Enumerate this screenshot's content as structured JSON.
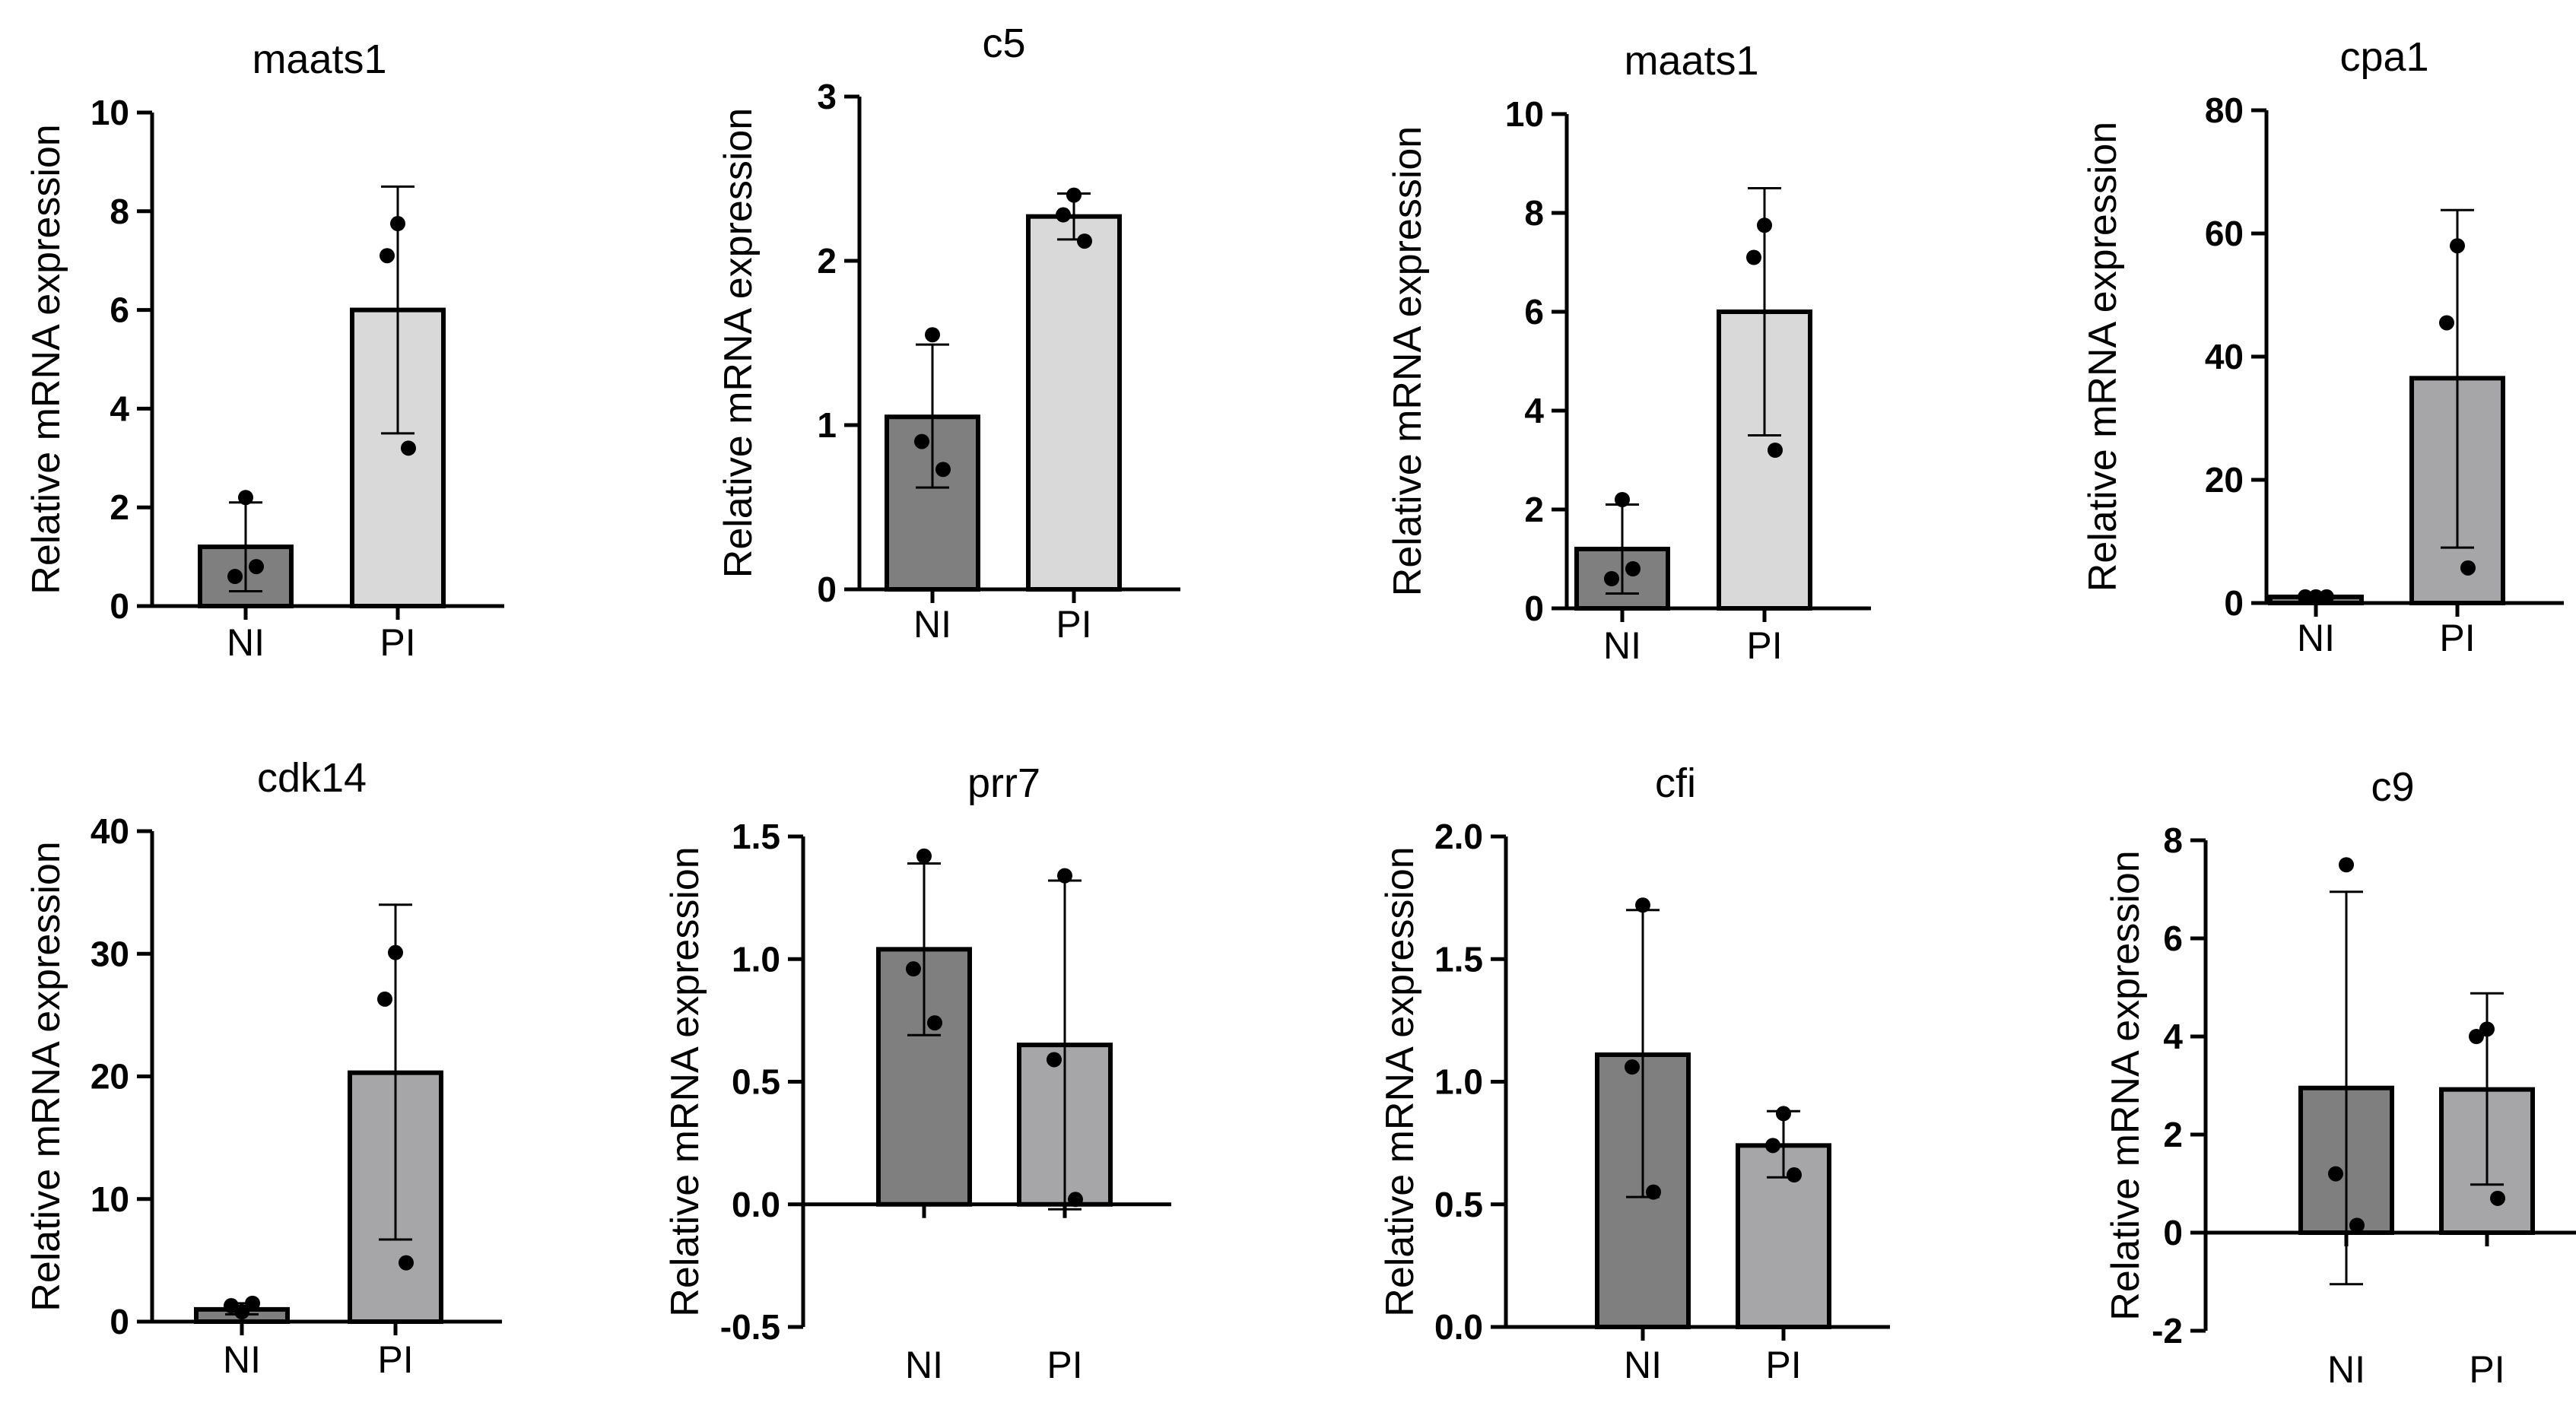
{
  "chart_data": [
    {
      "type": "bar",
      "title": "maats1",
      "ylabel": "Relative mRNA expression",
      "categories": [
        "NI",
        "PI"
      ],
      "ylim": [
        0,
        10
      ],
      "ticks": [
        "0",
        "2",
        "4",
        "6",
        "8",
        "10"
      ],
      "values": [
        1.2,
        6.0
      ],
      "errors": [
        [
          0.3,
          2.1
        ],
        [
          3.5,
          8.5
        ]
      ],
      "points": [
        [
          2.2,
          0.6,
          0.8
        ],
        [
          7.75,
          7.1,
          3.2
        ]
      ]
    },
    {
      "type": "bar",
      "title": "c5",
      "ylabel": "Relative mRNA expression",
      "categories": [
        "NI",
        "PI"
      ],
      "ylim": [
        0,
        3
      ],
      "ticks": [
        "0",
        "1",
        "2",
        "3"
      ],
      "values": [
        1.05,
        2.27
      ],
      "errors": [
        [
          0.62,
          1.49
        ],
        [
          2.13,
          2.41
        ]
      ],
      "points": [
        [
          1.55,
          0.9,
          0.73
        ],
        [
          2.4,
          2.28,
          2.12
        ]
      ]
    },
    {
      "type": "bar",
      "title": "maats1",
      "ylabel": "Relative mRNA expression",
      "categories": [
        "NI",
        "PI"
      ],
      "ylim": [
        0,
        10
      ],
      "ticks": [
        "0",
        "2",
        "4",
        "6",
        "8",
        "10"
      ],
      "values": [
        1.2,
        6.0
      ],
      "errors": [
        [
          0.3,
          2.1
        ],
        [
          3.5,
          8.5
        ]
      ],
      "points": [
        [
          2.2,
          0.6,
          0.8
        ],
        [
          7.75,
          7.1,
          3.2
        ]
      ]
    },
    {
      "type": "bar",
      "title": "cpa1",
      "ylabel": "Relative mRNA expression",
      "categories": [
        "NI",
        "PI"
      ],
      "ylim": [
        0,
        80
      ],
      "ticks": [
        "0",
        "20",
        "40",
        "60",
        "80"
      ],
      "values": [
        1.0,
        36.5
      ],
      "errors": [
        [
          0.7,
          1.3
        ],
        [
          9.0,
          63.8
        ]
      ],
      "points": [
        [
          1.0,
          1.0,
          1.0
        ],
        [
          58.0,
          45.5,
          5.7
        ]
      ]
    },
    {
      "type": "bar",
      "title": "cdk14",
      "ylabel": "Relative mRNA expression",
      "categories": [
        "NI",
        "PI"
      ],
      "ylim": [
        0,
        40
      ],
      "ticks": [
        "0",
        "10",
        "20",
        "30",
        "40"
      ],
      "values": [
        1.0,
        20.3
      ],
      "errors": [
        [
          0.6,
          1.5
        ],
        [
          6.7,
          34.0
        ]
      ],
      "points": [
        [
          0.8,
          1.3,
          1.5
        ],
        [
          30.1,
          26.3,
          4.8
        ]
      ]
    },
    {
      "type": "bar",
      "title": "prr7",
      "ylabel": "Relative mRNA expression",
      "categories": [
        "NI",
        "PI"
      ],
      "ylim": [
        -0.5,
        1.5
      ],
      "ticks": [
        "-0.5",
        "0.0",
        "0.5",
        "1.0",
        "1.5"
      ],
      "values": [
        1.04,
        0.65
      ],
      "errors": [
        [
          0.69,
          1.39
        ],
        [
          -0.02,
          1.32
        ]
      ],
      "points": [
        [
          1.42,
          0.96,
          0.74
        ],
        [
          1.34,
          0.59,
          0.02
        ]
      ]
    },
    {
      "type": "bar",
      "title": "cfi",
      "ylabel": "Relative mRNA expression",
      "categories": [
        "NI",
        "PI"
      ],
      "ylim": [
        0,
        2.0
      ],
      "ticks": [
        "0.0",
        "0.5",
        "1.0",
        "1.5",
        "2.0"
      ],
      "values": [
        1.11,
        0.74
      ],
      "errors": [
        [
          0.53,
          1.7
        ],
        [
          0.61,
          0.88
        ]
      ],
      "points": [
        [
          1.72,
          1.06,
          0.55
        ],
        [
          0.87,
          0.74,
          0.62
        ]
      ]
    },
    {
      "type": "bar",
      "title": "c9",
      "ylabel": "Relative mRNA expression",
      "categories": [
        "NI",
        "PI"
      ],
      "ylim": [
        -2,
        8
      ],
      "ticks": [
        "-2",
        "0",
        "2",
        "4",
        "6",
        "8"
      ],
      "values": [
        2.95,
        2.92
      ],
      "errors": [
        [
          -1.05,
          6.95
        ],
        [
          0.98,
          4.88
        ]
      ],
      "points": [
        [
          7.5,
          1.2,
          0.15
        ],
        [
          4.15,
          4.0,
          0.7
        ]
      ]
    }
  ],
  "colors": {
    "ni_bar": "#7f7f7f",
    "pi_bar_light": "#d9d9d9",
    "pi_bar_mid": "#a6a6a9",
    "axis": "#000000"
  }
}
